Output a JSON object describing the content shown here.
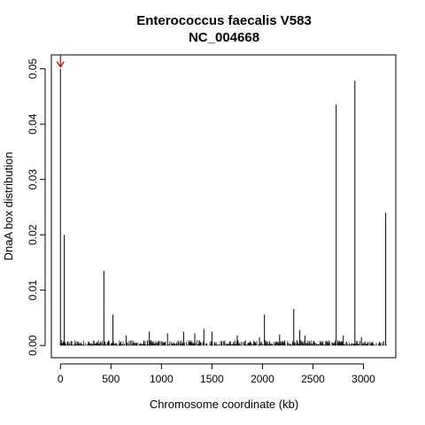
{
  "chart_data": {
    "type": "bar",
    "title": "Enterococcus faecalis V583",
    "subtitle": "NC_004668",
    "xlabel": "Chromosome coordinate (kb)",
    "ylabel": "DnaA box distribution",
    "xlim": [
      -90,
      3320
    ],
    "ylim": [
      -0.0022,
      0.0525
    ],
    "xticks": [
      0,
      500,
      1000,
      1500,
      2000,
      2500,
      3000
    ],
    "xtick_labels": [
      "0",
      "500",
      "1000",
      "1500",
      "2000",
      "2500",
      "3000"
    ],
    "yticks": [
      0,
      0.01,
      0.02,
      0.03,
      0.04,
      0.05
    ],
    "ytick_labels": [
      "0.00",
      "0.01",
      "0.02",
      "0.03",
      "0.04",
      "0.05"
    ],
    "grid": false,
    "marker": {
      "x": 0,
      "color": "#cc0000",
      "shape": "arrow-down"
    },
    "peaks": [
      {
        "x": 0,
        "y": 0.05
      },
      {
        "x": 38,
        "y": 0.02
      },
      {
        "x": 430,
        "y": 0.0135
      },
      {
        "x": 520,
        "y": 0.0056
      },
      {
        "x": 650,
        "y": 0.0018
      },
      {
        "x": 880,
        "y": 0.0025
      },
      {
        "x": 1060,
        "y": 0.0022
      },
      {
        "x": 1220,
        "y": 0.0025
      },
      {
        "x": 1330,
        "y": 0.0022
      },
      {
        "x": 1420,
        "y": 0.003
      },
      {
        "x": 1500,
        "y": 0.0025
      },
      {
        "x": 1750,
        "y": 0.0018
      },
      {
        "x": 1970,
        "y": 0.0015
      },
      {
        "x": 2020,
        "y": 0.0056
      },
      {
        "x": 2170,
        "y": 0.002
      },
      {
        "x": 2310,
        "y": 0.0066
      },
      {
        "x": 2370,
        "y": 0.0028
      },
      {
        "x": 2420,
        "y": 0.0018
      },
      {
        "x": 2730,
        "y": 0.0435
      },
      {
        "x": 2800,
        "y": 0.0018
      },
      {
        "x": 2915,
        "y": 0.0478
      },
      {
        "x": 2980,
        "y": 0.0015
      },
      {
        "x": 3220,
        "y": 0.024
      }
    ],
    "baseline_noise_max": 0.001,
    "x_max_data": 3230
  }
}
